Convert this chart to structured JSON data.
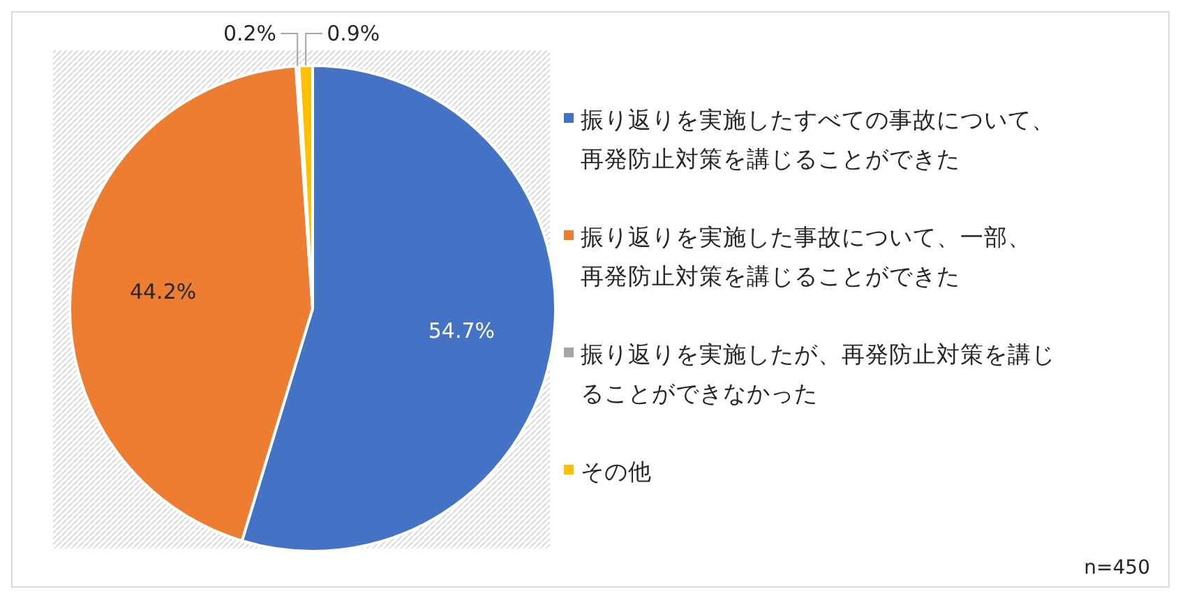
{
  "chart_data": {
    "type": "pie",
    "categories": [
      "振り返りを実施したすべての事故について、再発防止対策を講じることができた",
      "振り返りを実施した事故について、一部、再発防止対策を講じることができた",
      "振り返りを実施したが、再発防止対策を講じることができなかった",
      "その他"
    ],
    "values": [
      54.7,
      44.2,
      0.2,
      0.9
    ],
    "colors": [
      "#4472c4",
      "#ed7d31",
      "#a5a5a5",
      "#ffc000"
    ],
    "value_labels": [
      "54.7%",
      "44.2%",
      "0.2%",
      "0.9%"
    ],
    "legend": "right",
    "annotations": [
      "n=450"
    ]
  }
}
